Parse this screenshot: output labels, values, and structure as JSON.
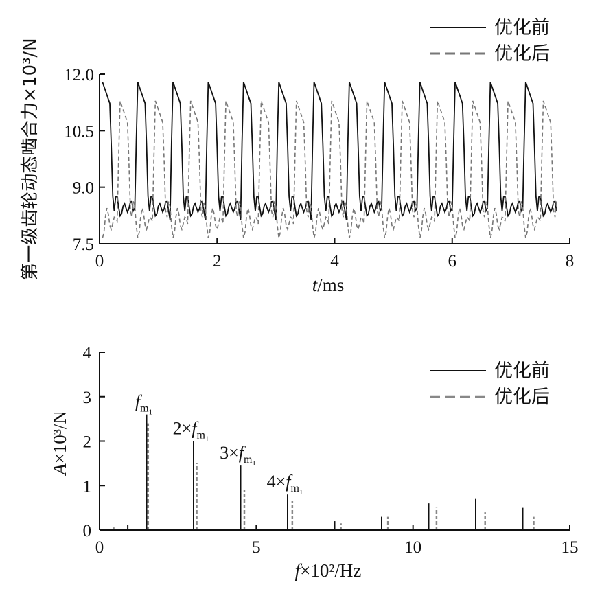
{
  "chart_data": [
    {
      "type": "line",
      "ylabel": "第一级齿轮动态啮合力×10³/N",
      "xlabel_italic": "t",
      "xlabel_rest": "/ms",
      "xlim": [
        0,
        8
      ],
      "ylim": [
        7.5,
        12.0
      ],
      "x_ticks": [
        "0",
        "2",
        "4",
        "6",
        "8"
      ],
      "y_ticks": [
        "7.5",
        "9.0",
        "10.5",
        "12.0"
      ],
      "legend_position": "top-right",
      "series": [
        {
          "name": "优化前",
          "style": "solid",
          "color": "#111111",
          "period_ms": 0.6,
          "phase_ms": 0.0,
          "peak": 11.8,
          "trough": 7.95,
          "ripple": 8.45
        },
        {
          "name": "优化后",
          "style": "dashed",
          "color": "#777777",
          "period_ms": 0.6,
          "phase_ms": 0.3,
          "peak": 11.3,
          "trough": 7.6,
          "ripple": 8.1
        }
      ]
    },
    {
      "type": "line",
      "ylabel_italic": "A",
      "ylabel_rest": "×10³/N",
      "xlabel_italic": "f",
      "xlabel_rest": "×10²/Hz",
      "xlim": [
        0,
        15
      ],
      "ylim": [
        0,
        4
      ],
      "x_ticks": [
        "0",
        "5",
        "10",
        "15"
      ],
      "y_ticks": [
        "0",
        "1",
        "2",
        "3",
        "4"
      ],
      "legend_position": "top-right",
      "annotations": [
        {
          "prefix": "",
          "main": "f",
          "sub": "m",
          "subsub": "1",
          "x": 1.5,
          "y": 2.6
        },
        {
          "prefix": "2×",
          "main": "f",
          "sub": "m",
          "subsub": "1",
          "x": 3.0,
          "y": 2.0
        },
        {
          "prefix": "3×",
          "main": "f",
          "sub": "m",
          "subsub": "1",
          "x": 4.5,
          "y": 1.45
        },
        {
          "prefix": "4×",
          "main": "f",
          "sub": "m",
          "subsub": "1",
          "x": 6.0,
          "y": 0.8
        }
      ],
      "series": [
        {
          "name": "优化前",
          "style": "solid",
          "color": "#111111",
          "x": [
            0.9,
            1.5,
            3.0,
            4.5,
            6.0,
            7.5,
            9.0,
            10.5,
            12.0,
            13.5
          ],
          "values": [
            0.12,
            2.6,
            2.0,
            1.45,
            0.8,
            0.2,
            0.3,
            0.6,
            0.7,
            0.5
          ]
        },
        {
          "name": "优化后",
          "style": "dashed",
          "color": "#888888",
          "x": [
            0.45,
            1.55,
            3.1,
            4.62,
            6.15,
            7.7,
            9.2,
            10.75,
            12.3,
            13.85
          ],
          "values": [
            0.06,
            2.4,
            1.5,
            0.9,
            0.65,
            0.15,
            0.3,
            0.5,
            0.4,
            0.3
          ]
        }
      ]
    }
  ]
}
